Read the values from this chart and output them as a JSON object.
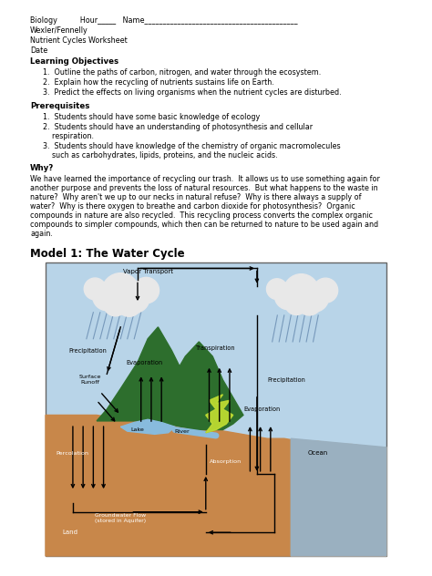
{
  "title": "Model 1: The Water Cycle",
  "header_lines": [
    "Biology          Hour_____   Name__________________________________________",
    "Wexler/Fennelly",
    "Nutrient Cycles Worksheet",
    "Date"
  ],
  "learning_objectives_header": "Learning Objectives",
  "learning_objectives": [
    "Outline the paths of carbon, nitrogen, and water through the ecosystem.",
    "Explain how the recycling of nutrients sustains life on Earth.",
    "Predict the effects on living organisms when the nutrient cycles are disturbed."
  ],
  "prerequisites_header": "Prerequisites",
  "prereq1": "Students should have some basic knowledge of ecology",
  "prereq2a": "Students should have an understanding of photosynthesis and cellular",
  "prereq2b": "    respiration.",
  "prereq3a": "Students should have knowledge of the chemistry of organic macromolecules",
  "prereq3b": "    such as carbohydrates, lipids, proteins, and the nucleic acids.",
  "why_header": "Why?",
  "why_lines": [
    "We have learned the importance of recycling our trash.  It allows us to use something again for",
    "another purpose and prevents the loss of natural resources.  But what happens to the waste in",
    "nature?  Why aren't we up to our necks in natural refuse?  Why is there always a supply of",
    "water?  Why is there oxygen to breathe and carbon dioxide for photosynthesis?  Organic",
    "compounds in nature are also recycled.  This recycling process converts the complex organic",
    "compounds to simpler compounds, which then can be returned to nature to be used again and",
    "again."
  ],
  "bg_color": "#ffffff",
  "text_color": "#000000",
  "fs": 5.8,
  "fsh": 6.2,
  "lm": 0.07,
  "diagram_labels": {
    "vapor_transport": "Vapor Transport",
    "precipitation_left": "Precipitation",
    "precipitation_right": "Precipitation",
    "evaporation_left": "Evaporation",
    "evaporation_right": "Evaporation",
    "transpiration": "Transpiration",
    "surface_runoff": "Surface\nRunoff",
    "lake": "Lake",
    "river": "River",
    "percolation": "Percolation",
    "absorption": "Absorption",
    "groundwater": "Groundwater Flow\n(stored in Aquifer)",
    "land": "Land",
    "ocean": "Ocean"
  },
  "dc": {
    "sky": "#b8d4e8",
    "mountain": "#2d6e2d",
    "ground": "#c8874a",
    "water_body": "#7ab8d8",
    "ocean_bg": "#9ab0c0",
    "cloud": "#e8e8e8",
    "rain": "#7799bb",
    "arrow": "#000000",
    "tree": "#90c828",
    "border": "#666666",
    "label_white": "#ffffff",
    "label_black": "#000000"
  }
}
